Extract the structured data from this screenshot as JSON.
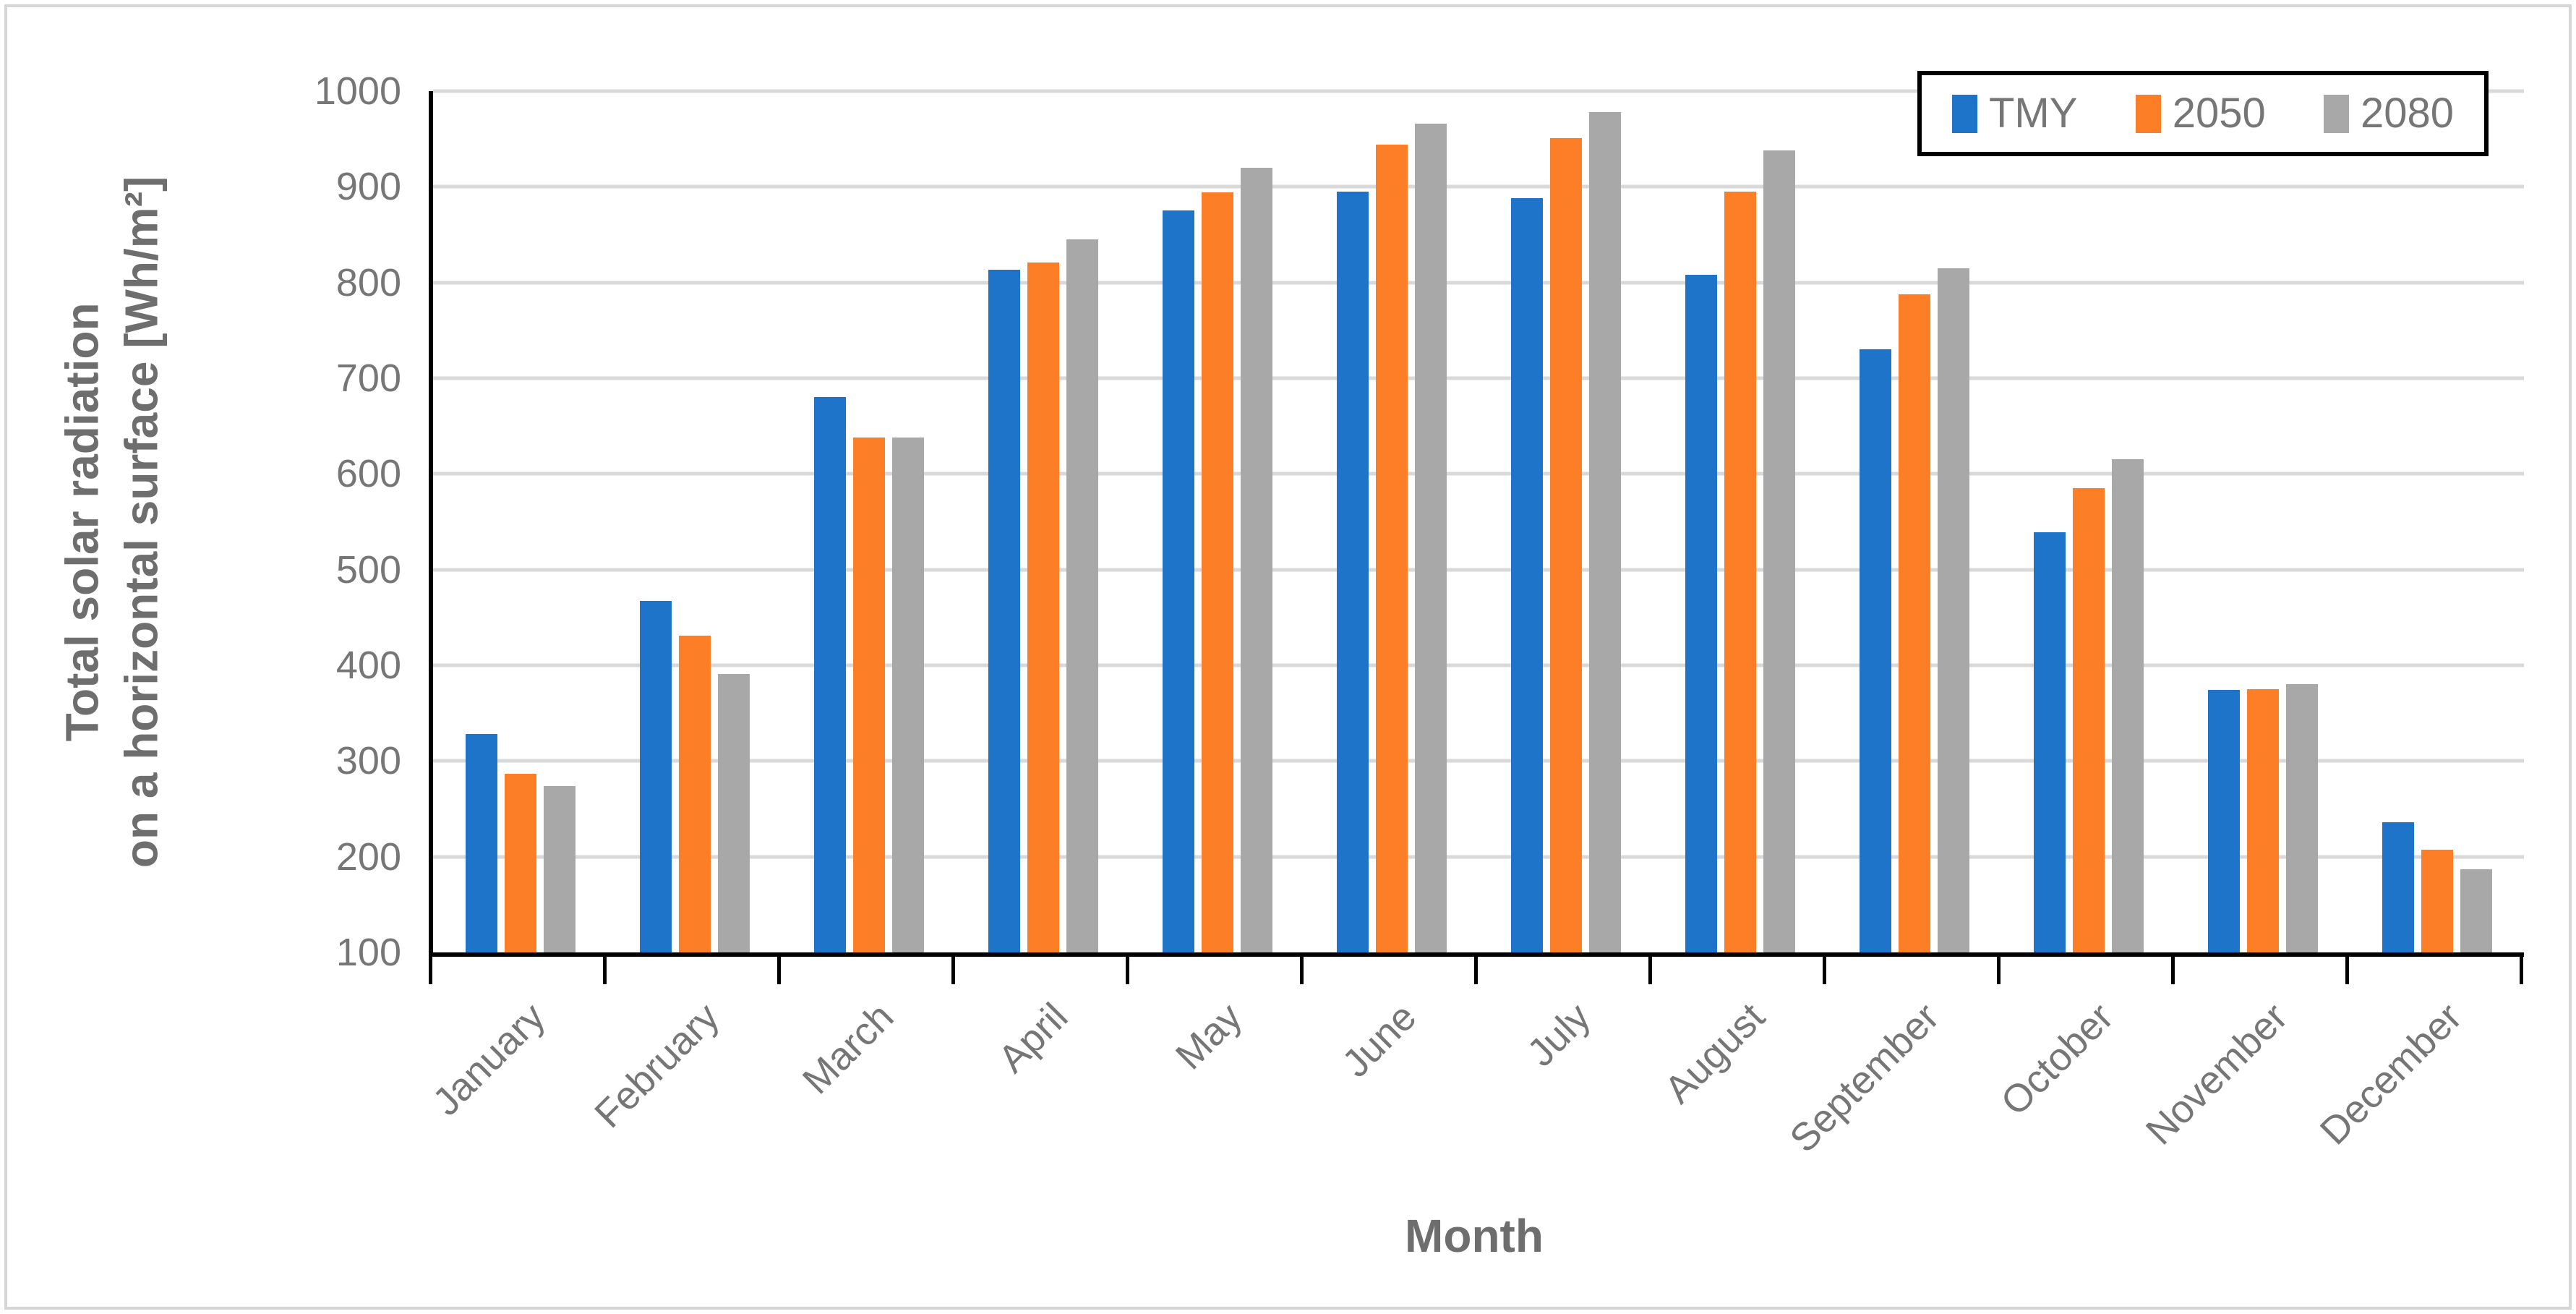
{
  "chart_data": {
    "type": "bar",
    "title": "",
    "xlabel": "Month",
    "ylabel_line1": "Total solar radiation",
    "ylabel_line2": "on a horizontal surface [Wh/m²]",
    "ylim": [
      100,
      1000
    ],
    "yticks": [
      100,
      200,
      300,
      400,
      500,
      600,
      700,
      800,
      900,
      1000
    ],
    "grid": "horizontal-gridlines-on",
    "legend_position": "top-right-inside",
    "categories": [
      "January",
      "February",
      "March",
      "April",
      "May",
      "June",
      "July",
      "August",
      "September",
      "October",
      "November",
      "December"
    ],
    "series": [
      {
        "name": "TMY",
        "color": "#1e74c8",
        "values": [
          328,
          467,
          680,
          813,
          875,
          895,
          888,
          808,
          730,
          539,
          374,
          236
        ]
      },
      {
        "name": "2050",
        "color": "#fc7e26",
        "values": [
          287,
          431,
          638,
          821,
          894,
          944,
          951,
          895,
          788,
          585,
          375,
          207
        ]
      },
      {
        "name": "2080",
        "color": "#a8a8a8",
        "values": [
          274,
          391,
          638,
          845,
          920,
          966,
          978,
          938,
          815,
          615,
          380,
          187
        ]
      }
    ]
  },
  "colors": {
    "axis_line": "#000000",
    "gridline": "#d9d9d9",
    "tick_text": "#767676",
    "axis_title_text": "#6e6e6e",
    "outer_border": "#d6d6d6",
    "legend_border": "#000000"
  }
}
